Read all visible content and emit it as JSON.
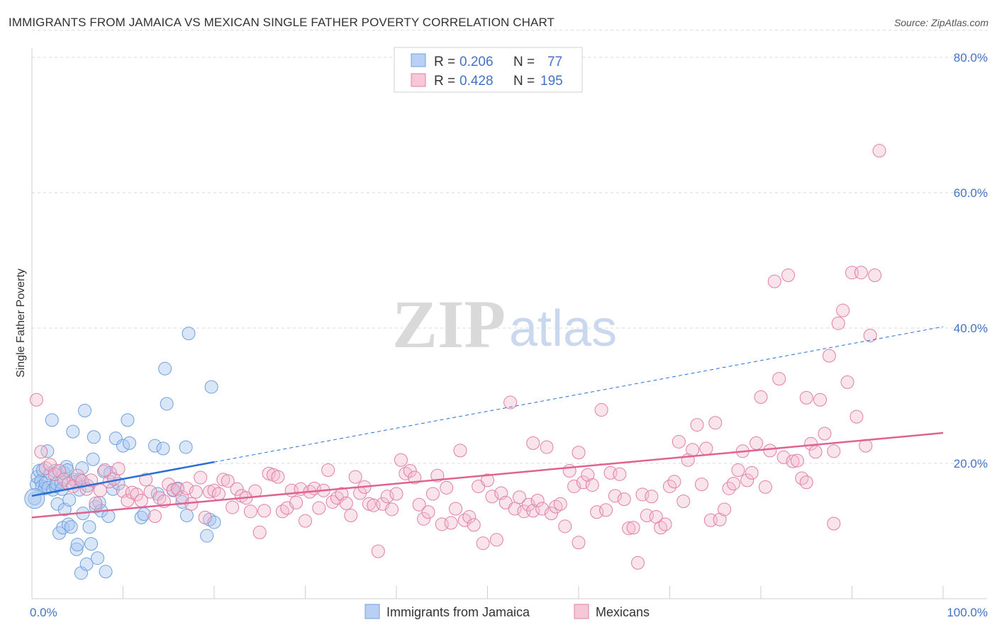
{
  "title": "IMMIGRANTS FROM JAMAICA VS MEXICAN SINGLE FATHER POVERTY CORRELATION CHART",
  "source": "Source: ZipAtlas.com",
  "watermark": {
    "zip": "ZIP",
    "atlas": "atlas"
  },
  "colors": {
    "blue": "#6fa0e0",
    "blue_fill": "#a9c7ef",
    "blue_line": "#2a6fd1",
    "pink": "#e07fa3",
    "pink_fill": "#f3bcd0",
    "pink_line": "#e0638f",
    "tick": "#4472c4"
  },
  "legend": {
    "rows": [
      {
        "r_label": "R =",
        "r_value": "0.206",
        "n_label": "N =",
        "n_value": "77"
      },
      {
        "r_label": "R =",
        "r_value": "0.428",
        "n_label": "N =",
        "n_value": "195"
      }
    ]
  },
  "bottom_legend": [
    "Immigrants from Jamaica",
    "Mexicans"
  ],
  "chart_data": {
    "type": "scatter",
    "title": "IMMIGRANTS FROM JAMAICA VS MEXICAN SINGLE FATHER POVERTY CORRELATION CHART",
    "xlabel": "",
    "ylabel": "Single Father Poverty",
    "xlim": [
      0,
      100
    ],
    "ylim": [
      0,
      84
    ],
    "x_tick_labels": [
      "0.0%",
      "100.0%"
    ],
    "y_ticks": [
      20,
      40,
      60,
      80
    ],
    "y_tick_labels": [
      "20.0%",
      "40.0%",
      "60.0%",
      "80.0%"
    ],
    "grid": true,
    "legend_position": "top-center",
    "series": [
      {
        "name": "Immigrants from Jamaica",
        "color": "#6fa0e0",
        "trend": {
          "x": [
            0,
            20
          ],
          "y": [
            15.2,
            20.2
          ],
          "extended_to": [
            100,
            40.2
          ]
        },
        "points": [
          [
            0.3,
            14.8
          ],
          [
            0.5,
            16.9
          ],
          [
            0.6,
            18.0
          ],
          [
            0.8,
            18.9
          ],
          [
            1.0,
            17.4
          ],
          [
            1.1,
            16.6
          ],
          [
            1.2,
            19.0
          ],
          [
            1.4,
            16.3
          ],
          [
            1.5,
            17.1
          ],
          [
            1.7,
            21.8
          ],
          [
            1.8,
            16.4
          ],
          [
            2.0,
            18.5
          ],
          [
            2.2,
            26.4
          ],
          [
            2.3,
            16.1
          ],
          [
            2.5,
            18.9
          ],
          [
            2.6,
            16.6
          ],
          [
            2.7,
            17.0
          ],
          [
            2.8,
            14.0
          ],
          [
            3.0,
            9.7
          ],
          [
            3.2,
            17.2
          ],
          [
            3.3,
            16.2
          ],
          [
            3.4,
            10.5
          ],
          [
            3.5,
            18.6
          ],
          [
            3.6,
            13.2
          ],
          [
            3.8,
            19.5
          ],
          [
            3.9,
            19.0
          ],
          [
            4.0,
            11.0
          ],
          [
            4.1,
            14.6
          ],
          [
            4.3,
            10.6
          ],
          [
            4.5,
            24.7
          ],
          [
            4.6,
            17.6
          ],
          [
            4.8,
            17.3
          ],
          [
            4.9,
            7.3
          ],
          [
            5.0,
            8.0
          ],
          [
            5.2,
            16.1
          ],
          [
            5.3,
            17.6
          ],
          [
            5.4,
            3.8
          ],
          [
            5.5,
            19.3
          ],
          [
            5.6,
            12.6
          ],
          [
            5.8,
            27.8
          ],
          [
            6.0,
            5.1
          ],
          [
            6.1,
            16.7
          ],
          [
            6.3,
            10.6
          ],
          [
            6.5,
            8.1
          ],
          [
            6.7,
            20.6
          ],
          [
            6.8,
            23.9
          ],
          [
            7.0,
            13.6
          ],
          [
            7.2,
            6.0
          ],
          [
            7.4,
            14.2
          ],
          [
            7.6,
            13.0
          ],
          [
            7.9,
            18.8
          ],
          [
            8.1,
            4.0
          ],
          [
            8.4,
            12.2
          ],
          [
            8.6,
            18.6
          ],
          [
            8.9,
            16.2
          ],
          [
            9.2,
            23.7
          ],
          [
            9.5,
            17.0
          ],
          [
            10.0,
            22.6
          ],
          [
            10.5,
            26.4
          ],
          [
            10.7,
            23.0
          ],
          [
            12.0,
            12.0
          ],
          [
            12.3,
            12.5
          ],
          [
            13.5,
            22.6
          ],
          [
            13.8,
            15.5
          ],
          [
            14.4,
            22.2
          ],
          [
            14.8,
            28.8
          ],
          [
            14.6,
            34.0
          ],
          [
            15.5,
            16.0
          ],
          [
            16.0,
            16.3
          ],
          [
            16.5,
            14.3
          ],
          [
            16.9,
            22.4
          ],
          [
            17.2,
            39.2
          ],
          [
            19.2,
            9.3
          ],
          [
            19.5,
            11.7
          ],
          [
            19.7,
            31.3
          ],
          [
            20.0,
            11.3
          ],
          [
            17.0,
            12.3
          ]
        ]
      },
      {
        "name": "Mexicans",
        "color": "#e07fa3",
        "trend": {
          "x": [
            0,
            100
          ],
          "y": [
            12.0,
            24.5
          ]
        },
        "points": [
          [
            0.5,
            29.4
          ],
          [
            1.0,
            21.7
          ],
          [
            1.5,
            19.3
          ],
          [
            2.0,
            19.8
          ],
          [
            2.5,
            18.4
          ],
          [
            3.0,
            18.9
          ],
          [
            3.5,
            17.6
          ],
          [
            4.0,
            17.0
          ],
          [
            4.5,
            16.6
          ],
          [
            5.0,
            18.2
          ],
          [
            5.5,
            17.4
          ],
          [
            6.0,
            16.2
          ],
          [
            6.5,
            17.5
          ],
          [
            7.0,
            14.1
          ],
          [
            7.5,
            16.0
          ],
          [
            8.0,
            19.0
          ],
          [
            8.5,
            17.3
          ],
          [
            9.0,
            17.7
          ],
          [
            9.5,
            19.2
          ],
          [
            10.0,
            15.9
          ],
          [
            10.5,
            14.5
          ],
          [
            11.0,
            15.7
          ],
          [
            11.5,
            15.4
          ],
          [
            12.0,
            14.5
          ],
          [
            12.5,
            17.6
          ],
          [
            13.0,
            15.8
          ],
          [
            13.5,
            12.2
          ],
          [
            14.0,
            14.9
          ],
          [
            14.5,
            14.4
          ],
          [
            15.0,
            16.9
          ],
          [
            15.5,
            16.1
          ],
          [
            16.0,
            16.2
          ],
          [
            16.5,
            15.0
          ],
          [
            17.0,
            16.3
          ],
          [
            17.5,
            14.0
          ],
          [
            18.0,
            15.8
          ],
          [
            18.5,
            17.9
          ],
          [
            19.0,
            12.0
          ],
          [
            19.5,
            15.8
          ],
          [
            20.0,
            16.0
          ],
          [
            20.5,
            15.5
          ],
          [
            21.0,
            17.6
          ],
          [
            21.5,
            17.4
          ],
          [
            22.0,
            13.5
          ],
          [
            22.5,
            16.2
          ],
          [
            23.0,
            15.2
          ],
          [
            23.5,
            14.9
          ],
          [
            24.0,
            12.9
          ],
          [
            24.5,
            15.9
          ],
          [
            25.0,
            9.8
          ],
          [
            25.5,
            13.0
          ],
          [
            26.0,
            18.5
          ],
          [
            26.5,
            18.3
          ],
          [
            27.0,
            18.0
          ],
          [
            27.5,
            12.9
          ],
          [
            28.0,
            13.4
          ],
          [
            28.5,
            16.0
          ],
          [
            29.0,
            14.2
          ],
          [
            29.5,
            16.2
          ],
          [
            30.0,
            11.5
          ],
          [
            30.5,
            15.8
          ],
          [
            31.0,
            16.3
          ],
          [
            31.5,
            13.4
          ],
          [
            32.0,
            16.0
          ],
          [
            32.5,
            19.0
          ],
          [
            33.0,
            14.3
          ],
          [
            33.5,
            14.9
          ],
          [
            34.0,
            15.5
          ],
          [
            34.5,
            14.1
          ],
          [
            35.0,
            12.3
          ],
          [
            35.5,
            18.0
          ],
          [
            36.0,
            15.6
          ],
          [
            36.5,
            16.5
          ],
          [
            37.0,
            14.0
          ],
          [
            37.5,
            13.8
          ],
          [
            38.0,
            7.0
          ],
          [
            38.5,
            14.0
          ],
          [
            39.0,
            15.1
          ],
          [
            39.5,
            13.2
          ],
          [
            40.0,
            15.5
          ],
          [
            40.5,
            20.5
          ],
          [
            41.0,
            18.5
          ],
          [
            41.5,
            18.9
          ],
          [
            42.0,
            17.9
          ],
          [
            42.5,
            13.9
          ],
          [
            43.0,
            11.8
          ],
          [
            43.5,
            12.8
          ],
          [
            44.0,
            15.5
          ],
          [
            44.5,
            18.2
          ],
          [
            45.0,
            11.0
          ],
          [
            45.5,
            16.4
          ],
          [
            46.0,
            11.2
          ],
          [
            46.5,
            13.3
          ],
          [
            47.0,
            21.9
          ],
          [
            47.5,
            11.6
          ],
          [
            48.0,
            12.1
          ],
          [
            48.5,
            10.9
          ],
          [
            49.0,
            16.6
          ],
          [
            49.5,
            8.2
          ],
          [
            50.0,
            17.5
          ],
          [
            50.5,
            15.1
          ],
          [
            51.0,
            8.7
          ],
          [
            51.5,
            15.6
          ],
          [
            52.0,
            14.2
          ],
          [
            52.5,
            29.0
          ],
          [
            53.0,
            13.3
          ],
          [
            53.5,
            15.0
          ],
          [
            54.0,
            12.9
          ],
          [
            54.5,
            13.9
          ],
          [
            55.0,
            13.0
          ],
          [
            55.5,
            14.5
          ],
          [
            56.0,
            13.3
          ],
          [
            56.5,
            22.4
          ],
          [
            57.0,
            12.6
          ],
          [
            57.5,
            13.6
          ],
          [
            58.0,
            14.0
          ],
          [
            58.5,
            10.7
          ],
          [
            59.0,
            18.9
          ],
          [
            59.5,
            16.6
          ],
          [
            60.0,
            8.3
          ],
          [
            60.5,
            17.2
          ],
          [
            61.0,
            18.3
          ],
          [
            61.5,
            16.8
          ],
          [
            62.0,
            12.8
          ],
          [
            62.5,
            27.9
          ],
          [
            63.0,
            13.1
          ],
          [
            63.5,
            18.6
          ],
          [
            64.0,
            15.2
          ],
          [
            64.5,
            18.4
          ],
          [
            65.0,
            14.7
          ],
          [
            65.5,
            10.4
          ],
          [
            66.0,
            10.5
          ],
          [
            66.5,
            5.3
          ],
          [
            67.0,
            15.4
          ],
          [
            67.5,
            12.3
          ],
          [
            68.0,
            15.1
          ],
          [
            68.5,
            12.1
          ],
          [
            69.0,
            10.5
          ],
          [
            69.5,
            11.0
          ],
          [
            70.0,
            16.6
          ],
          [
            70.5,
            17.3
          ],
          [
            71.0,
            23.2
          ],
          [
            71.5,
            14.4
          ],
          [
            72.0,
            20.5
          ],
          [
            72.5,
            22.0
          ],
          [
            73.0,
            25.7
          ],
          [
            73.5,
            16.9
          ],
          [
            74.0,
            22.2
          ],
          [
            74.5,
            11.6
          ],
          [
            75.0,
            26.0
          ],
          [
            75.5,
            11.7
          ],
          [
            76.0,
            13.2
          ],
          [
            76.5,
            16.3
          ],
          [
            77.0,
            17.0
          ],
          [
            77.5,
            19.0
          ],
          [
            78.0,
            21.8
          ],
          [
            78.5,
            17.5
          ],
          [
            79.0,
            18.6
          ],
          [
            79.5,
            23.0
          ],
          [
            80.0,
            29.8
          ],
          [
            80.5,
            16.5
          ],
          [
            81.0,
            21.9
          ],
          [
            81.5,
            46.9
          ],
          [
            82.0,
            32.5
          ],
          [
            82.5,
            20.9
          ],
          [
            83.0,
            47.8
          ],
          [
            83.5,
            20.3
          ],
          [
            84.0,
            20.4
          ],
          [
            84.5,
            17.8
          ],
          [
            85.0,
            29.7
          ],
          [
            85.5,
            22.9
          ],
          [
            86.0,
            21.7
          ],
          [
            86.5,
            29.4
          ],
          [
            87.0,
            24.4
          ],
          [
            87.5,
            35.9
          ],
          [
            88.0,
            11.1
          ],
          [
            88.5,
            40.7
          ],
          [
            89.0,
            42.6
          ],
          [
            89.5,
            32.0
          ],
          [
            90.0,
            48.2
          ],
          [
            90.5,
            26.9
          ],
          [
            91.0,
            48.2
          ],
          [
            91.5,
            22.6
          ],
          [
            92.0,
            38.9
          ],
          [
            92.5,
            47.8
          ],
          [
            93.0,
            66.2
          ],
          [
            88.0,
            21.8
          ],
          [
            85.0,
            17.2
          ],
          [
            60.0,
            21.6
          ],
          [
            55.0,
            23.0
          ]
        ]
      }
    ]
  }
}
